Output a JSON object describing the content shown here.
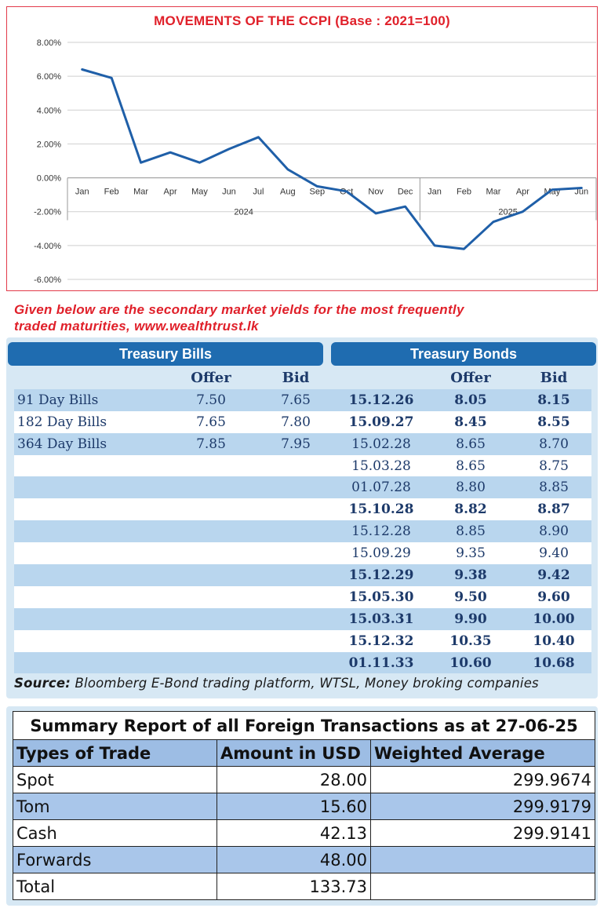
{
  "chart_data": {
    "type": "line",
    "title": "MOVEMENTS OF THE CCPI (Base : 2021=100)",
    "x": [
      "Jan",
      "Feb",
      "Mar",
      "Apr",
      "May",
      "Jun",
      "Jul",
      "Aug",
      "Sep",
      "Oct",
      "Nov",
      "Dec",
      "Jan",
      "Feb",
      "Mar",
      "Apr",
      "May",
      "Jun"
    ],
    "year_groups": [
      {
        "label": "2024",
        "months": 12
      },
      {
        "label": "2025",
        "months": 6
      }
    ],
    "series": [
      {
        "values": [
          6.4,
          5.9,
          0.9,
          1.5,
          0.9,
          1.7,
          2.4,
          0.5,
          -0.5,
          -0.8,
          -2.1,
          -1.7,
          -4.0,
          -4.2,
          -2.6,
          -2.0,
          -0.7,
          -0.6
        ]
      }
    ],
    "yticks": [
      "8.00%",
      "6.00%",
      "4.00%",
      "2.00%",
      "0.00%",
      "-2.00%",
      "-4.00%",
      "-6.00%"
    ],
    "ylim": [
      -6,
      8
    ],
    "grid": true,
    "line_color": "#1f5fa8"
  },
  "caption": {
    "line1": "Given below are the secondary market yields for the most frequently",
    "line2": "traded maturities, www.wealthtrust.lk"
  },
  "yields": {
    "bills_header": "Treasury Bills",
    "bonds_header": "Treasury Bonds",
    "col_offer": "Offer",
    "col_bid": "Bid",
    "bills": [
      {
        "name": "91 Day Bills",
        "offer": "7.50",
        "bid": "7.65"
      },
      {
        "name": "182 Day Bills",
        "offer": "7.65",
        "bid": "7.80"
      },
      {
        "name": "364 Day Bills",
        "offer": "7.85",
        "bid": "7.95"
      }
    ],
    "bonds": [
      {
        "maturity": "15.12.26",
        "offer": "8.05",
        "bid": "8.15",
        "bold": true
      },
      {
        "maturity": "15.09.27",
        "offer": "8.45",
        "bid": "8.55",
        "bold": true
      },
      {
        "maturity": "15.02.28",
        "offer": "8.65",
        "bid": "8.70",
        "bold": false
      },
      {
        "maturity": "15.03.28",
        "offer": "8.65",
        "bid": "8.75",
        "bold": false
      },
      {
        "maturity": "01.07.28",
        "offer": "8.80",
        "bid": "8.85",
        "bold": false
      },
      {
        "maturity": "15.10.28",
        "offer": "8.82",
        "bid": "8.87",
        "bold": true
      },
      {
        "maturity": "15.12.28",
        "offer": "8.85",
        "bid": "8.90",
        "bold": false
      },
      {
        "maturity": "15.09.29",
        "offer": "9.35",
        "bid": "9.40",
        "bold": false
      },
      {
        "maturity": "15.12.29",
        "offer": "9.38",
        "bid": "9.42",
        "bold": true
      },
      {
        "maturity": "15.05.30",
        "offer": "9.50",
        "bid": "9.60",
        "bold": true
      },
      {
        "maturity": "15.03.31",
        "offer": "9.90",
        "bid": "10.00",
        "bold": true
      },
      {
        "maturity": "15.12.32",
        "offer": "10.35",
        "bid": "10.40",
        "bold": true
      },
      {
        "maturity": "01.11.33",
        "offer": "10.60",
        "bid": "10.68",
        "bold": true
      }
    ],
    "source_label": "Source:",
    "source_text": " Bloomberg E-Bond trading platform, WTSL, Money broking companies"
  },
  "fx_summary": {
    "title": "Summary Report of all Foreign Transactions as at 27-06-25",
    "headers": [
      "Types of Trade",
      "Amount in USD",
      "Weighted Average"
    ],
    "rows": [
      {
        "type": "Spot",
        "amount": "28.00",
        "avg": "299.9674"
      },
      {
        "type": "Tom",
        "amount": "15.60",
        "avg": "299.9179"
      },
      {
        "type": "Cash",
        "amount": "42.13",
        "avg": "299.9141"
      },
      {
        "type": "Forwards",
        "amount": "48.00",
        "avg": ""
      },
      {
        "type": "Total",
        "amount": "133.73",
        "avg": ""
      }
    ]
  }
}
